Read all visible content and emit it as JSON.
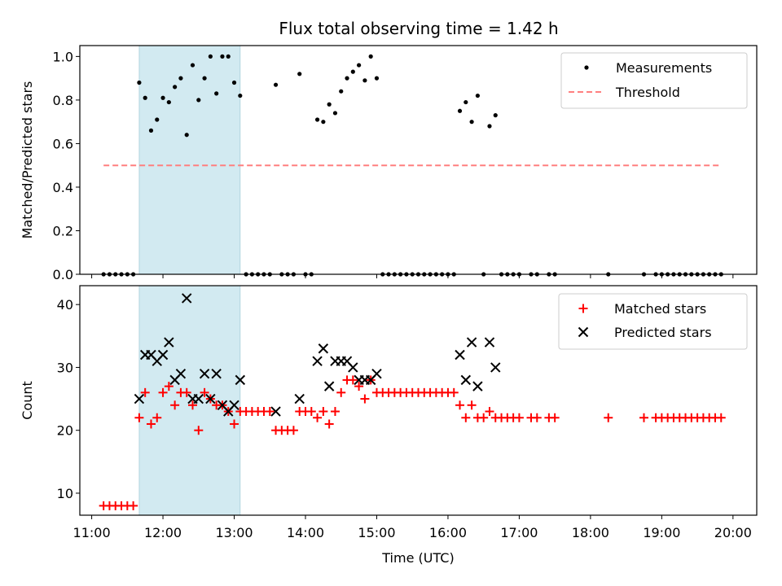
{
  "chart_data": [
    {
      "type": "scatter",
      "title": "Flux total observing time = 1.42 h",
      "xlabel": "",
      "ylabel": "Matched/Predicted stars",
      "xlim": [
        "11:00",
        "20:00"
      ],
      "ylim": [
        0,
        1.05
      ],
      "yticks": [
        "0.0",
        "0.2",
        "0.4",
        "0.6",
        "0.8",
        "1.0"
      ],
      "shaded_region": {
        "x": [
          "11:40",
          "13:05"
        ],
        "color": "#add8e6"
      },
      "legend_position": "top-right",
      "series": [
        {
          "name": "Measurements",
          "marker": "dot",
          "color": "#000000",
          "points": [
            [
              "11:10",
              0
            ],
            [
              "11:15",
              0
            ],
            [
              "11:20",
              0
            ],
            [
              "11:25",
              0
            ],
            [
              "11:30",
              0
            ],
            [
              "11:35",
              0
            ],
            [
              "11:40",
              0.88
            ],
            [
              "11:45",
              0.81
            ],
            [
              "11:50",
              0.66
            ],
            [
              "11:55",
              0.71
            ],
            [
              "12:00",
              0.81
            ],
            [
              "12:05",
              0.79
            ],
            [
              "12:10",
              0.86
            ],
            [
              "12:15",
              0.9
            ],
            [
              "12:20",
              0.64
            ],
            [
              "12:25",
              0.96
            ],
            [
              "12:30",
              0.8
            ],
            [
              "12:35",
              0.9
            ],
            [
              "12:40",
              1.0
            ],
            [
              "12:45",
              0.83
            ],
            [
              "12:50",
              1.0
            ],
            [
              "12:55",
              1.0
            ],
            [
              "13:00",
              0.88
            ],
            [
              "13:05",
              0.82
            ],
            [
              "13:10",
              0
            ],
            [
              "13:15",
              0
            ],
            [
              "13:20",
              0
            ],
            [
              "13:25",
              0
            ],
            [
              "13:30",
              0
            ],
            [
              "13:35",
              0.87
            ],
            [
              "13:40",
              0
            ],
            [
              "13:45",
              0
            ],
            [
              "13:50",
              0
            ],
            [
              "13:55",
              0.92
            ],
            [
              "14:00",
              0
            ],
            [
              "14:05",
              0
            ],
            [
              "14:10",
              0.71
            ],
            [
              "14:15",
              0.7
            ],
            [
              "14:20",
              0.78
            ],
            [
              "14:25",
              0.74
            ],
            [
              "14:30",
              0.84
            ],
            [
              "14:35",
              0.9
            ],
            [
              "14:40",
              0.93
            ],
            [
              "14:45",
              0.96
            ],
            [
              "14:50",
              0.89
            ],
            [
              "14:55",
              1.0
            ],
            [
              "15:00",
              0.9
            ],
            [
              "15:05",
              0
            ],
            [
              "15:10",
              0
            ],
            [
              "15:15",
              0
            ],
            [
              "15:20",
              0
            ],
            [
              "15:25",
              0
            ],
            [
              "15:30",
              0
            ],
            [
              "15:35",
              0
            ],
            [
              "15:40",
              0
            ],
            [
              "15:45",
              0
            ],
            [
              "15:50",
              0
            ],
            [
              "15:55",
              0
            ],
            [
              "16:00",
              0
            ],
            [
              "16:05",
              0
            ],
            [
              "16:10",
              0.75
            ],
            [
              "16:15",
              0.79
            ],
            [
              "16:20",
              0.7
            ],
            [
              "16:25",
              0.82
            ],
            [
              "16:30",
              0
            ],
            [
              "16:35",
              0.68
            ],
            [
              "16:40",
              0.73
            ],
            [
              "16:45",
              0
            ],
            [
              "16:50",
              0
            ],
            [
              "16:55",
              0
            ],
            [
              "17:00",
              0
            ],
            [
              "17:10",
              0
            ],
            [
              "17:15",
              0
            ],
            [
              "17:25",
              0
            ],
            [
              "17:30",
              0
            ],
            [
              "18:15",
              0
            ],
            [
              "18:45",
              0
            ],
            [
              "18:55",
              0
            ],
            [
              "19:00",
              0
            ],
            [
              "19:05",
              0
            ],
            [
              "19:10",
              0
            ],
            [
              "19:15",
              0
            ],
            [
              "19:20",
              0
            ],
            [
              "19:25",
              0
            ],
            [
              "19:30",
              0
            ],
            [
              "19:35",
              0
            ],
            [
              "19:40",
              0
            ],
            [
              "19:45",
              0
            ],
            [
              "19:50",
              0
            ]
          ]
        },
        {
          "name": "Threshold",
          "marker": "dashed-line",
          "color": "#ff7f7f",
          "points": [
            [
              "11:10",
              0.5
            ],
            [
              "19:50",
              0.5
            ]
          ]
        }
      ]
    },
    {
      "type": "scatter",
      "title": "",
      "xlabel": "Time (UTC)",
      "ylabel": "Count",
      "xlim": [
        "11:00",
        "20:00"
      ],
      "ylim": [
        6.5,
        43
      ],
      "xticks": [
        "11:00",
        "12:00",
        "13:00",
        "14:00",
        "15:00",
        "16:00",
        "17:00",
        "18:00",
        "19:00",
        "20:00"
      ],
      "yticks": [
        "10",
        "20",
        "30",
        "40"
      ],
      "shaded_region": {
        "x": [
          "11:40",
          "13:05"
        ],
        "color": "#add8e6"
      },
      "legend_position": "top-right",
      "series": [
        {
          "name": "Matched stars",
          "marker": "plus",
          "color": "#ff0000",
          "points": [
            [
              "11:10",
              8
            ],
            [
              "11:15",
              8
            ],
            [
              "11:20",
              8
            ],
            [
              "11:25",
              8
            ],
            [
              "11:30",
              8
            ],
            [
              "11:35",
              8
            ],
            [
              "11:40",
              22
            ],
            [
              "11:45",
              26
            ],
            [
              "11:50",
              21
            ],
            [
              "11:55",
              22
            ],
            [
              "12:00",
              26
            ],
            [
              "12:05",
              27
            ],
            [
              "12:10",
              24
            ],
            [
              "12:15",
              26
            ],
            [
              "12:20",
              26
            ],
            [
              "12:25",
              24
            ],
            [
              "12:30",
              20
            ],
            [
              "12:35",
              26
            ],
            [
              "12:40",
              25
            ],
            [
              "12:45",
              24
            ],
            [
              "12:50",
              24
            ],
            [
              "12:55",
              23
            ],
            [
              "13:00",
              21
            ],
            [
              "13:05",
              23
            ],
            [
              "13:10",
              23
            ],
            [
              "13:15",
              23
            ],
            [
              "13:20",
              23
            ],
            [
              "13:25",
              23
            ],
            [
              "13:30",
              23
            ],
            [
              "13:35",
              20
            ],
            [
              "13:40",
              20
            ],
            [
              "13:45",
              20
            ],
            [
              "13:50",
              20
            ],
            [
              "13:55",
              23
            ],
            [
              "14:00",
              23
            ],
            [
              "14:05",
              23
            ],
            [
              "14:10",
              22
            ],
            [
              "14:15",
              23
            ],
            [
              "14:20",
              21
            ],
            [
              "14:25",
              23
            ],
            [
              "14:30",
              26
            ],
            [
              "14:35",
              28
            ],
            [
              "14:40",
              28
            ],
            [
              "14:45",
              27
            ],
            [
              "14:50",
              25
            ],
            [
              "14:55",
              28
            ],
            [
              "15:00",
              26
            ],
            [
              "15:05",
              26
            ],
            [
              "15:10",
              26
            ],
            [
              "15:15",
              26
            ],
            [
              "15:20",
              26
            ],
            [
              "15:25",
              26
            ],
            [
              "15:30",
              26
            ],
            [
              "15:35",
              26
            ],
            [
              "15:40",
              26
            ],
            [
              "15:45",
              26
            ],
            [
              "15:50",
              26
            ],
            [
              "15:55",
              26
            ],
            [
              "16:00",
              26
            ],
            [
              "16:05",
              26
            ],
            [
              "16:10",
              24
            ],
            [
              "16:15",
              22
            ],
            [
              "16:20",
              24
            ],
            [
              "16:25",
              22
            ],
            [
              "16:30",
              22
            ],
            [
              "16:35",
              23
            ],
            [
              "16:40",
              22
            ],
            [
              "16:45",
              22
            ],
            [
              "16:50",
              22
            ],
            [
              "16:55",
              22
            ],
            [
              "17:00",
              22
            ],
            [
              "17:10",
              22
            ],
            [
              "17:15",
              22
            ],
            [
              "17:25",
              22
            ],
            [
              "17:30",
              22
            ],
            [
              "18:15",
              22
            ],
            [
              "18:45",
              22
            ],
            [
              "18:55",
              22
            ],
            [
              "19:00",
              22
            ],
            [
              "19:05",
              22
            ],
            [
              "19:10",
              22
            ],
            [
              "19:15",
              22
            ],
            [
              "19:20",
              22
            ],
            [
              "19:25",
              22
            ],
            [
              "19:30",
              22
            ],
            [
              "19:35",
              22
            ],
            [
              "19:40",
              22
            ],
            [
              "19:45",
              22
            ],
            [
              "19:50",
              22
            ]
          ]
        },
        {
          "name": "Predicted stars",
          "marker": "x",
          "color": "#000000",
          "points": [
            [
              "11:40",
              25
            ],
            [
              "11:45",
              32
            ],
            [
              "11:50",
              32
            ],
            [
              "11:55",
              31
            ],
            [
              "12:00",
              32
            ],
            [
              "12:05",
              34
            ],
            [
              "12:10",
              28
            ],
            [
              "12:15",
              29
            ],
            [
              "12:20",
              41
            ],
            [
              "12:25",
              25
            ],
            [
              "12:30",
              25
            ],
            [
              "12:35",
              29
            ],
            [
              "12:40",
              25
            ],
            [
              "12:45",
              29
            ],
            [
              "12:50",
              24
            ],
            [
              "12:55",
              23
            ],
            [
              "13:00",
              24
            ],
            [
              "13:05",
              28
            ],
            [
              "13:35",
              23
            ],
            [
              "13:55",
              25
            ],
            [
              "14:10",
              31
            ],
            [
              "14:15",
              33
            ],
            [
              "14:20",
              27
            ],
            [
              "14:25",
              31
            ],
            [
              "14:30",
              31
            ],
            [
              "14:35",
              31
            ],
            [
              "14:40",
              30
            ],
            [
              "14:45",
              28
            ],
            [
              "14:50",
              28
            ],
            [
              "14:55",
              28
            ],
            [
              "15:00",
              29
            ],
            [
              "16:10",
              32
            ],
            [
              "16:15",
              28
            ],
            [
              "16:20",
              34
            ],
            [
              "16:25",
              27
            ],
            [
              "16:35",
              34
            ],
            [
              "16:40",
              30
            ]
          ]
        }
      ]
    }
  ]
}
